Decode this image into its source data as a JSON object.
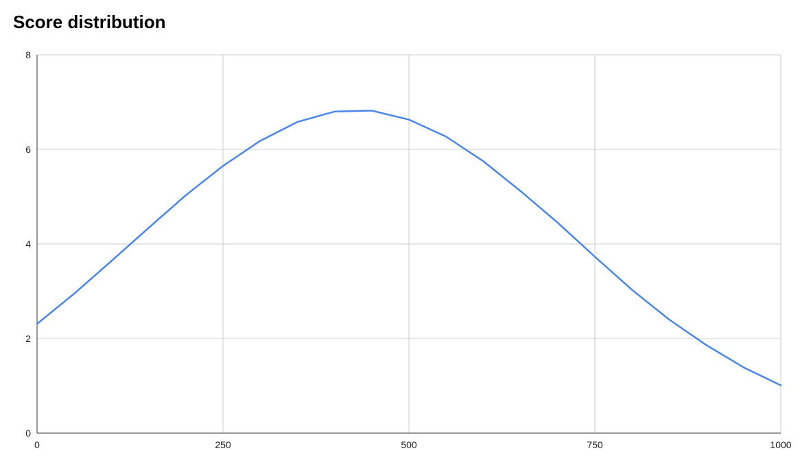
{
  "chart_data": {
    "type": "line",
    "title": "Score distribution",
    "xlabel": "",
    "ylabel": "",
    "xlim": [
      0,
      1000
    ],
    "ylim": [
      0,
      8
    ],
    "x_ticks": [
      0,
      250,
      500,
      750,
      1000
    ],
    "y_ticks": [
      0,
      2,
      4,
      6,
      8
    ],
    "grid": true,
    "legend": "none",
    "line_color": "#4a86e8",
    "grid_color": "#cccccc",
    "axis_color": "#333333",
    "series": [
      {
        "x": [
          0,
          50,
          100,
          150,
          200,
          250,
          300,
          350,
          400,
          450,
          500,
          550,
          600,
          650,
          700,
          750,
          800,
          850,
          900,
          950,
          1000
        ],
        "values": [
          2.31,
          2.95,
          3.64,
          4.34,
          5.03,
          5.65,
          6.18,
          6.58,
          6.8,
          6.82,
          6.63,
          6.27,
          5.75,
          5.12,
          4.45,
          3.73,
          3.03,
          2.4,
          1.86,
          1.39,
          1.01
        ]
      }
    ]
  }
}
